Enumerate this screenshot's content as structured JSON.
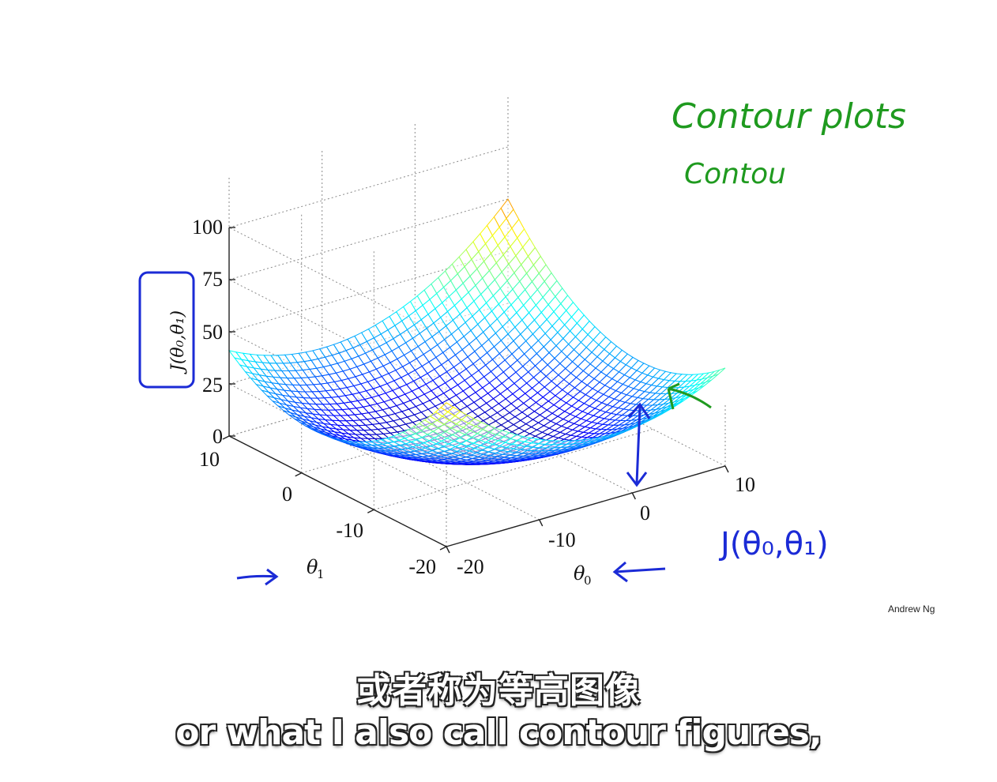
{
  "slide": {
    "credit": "Andrew Ng",
    "annotations": {
      "green_title": "Contour plots",
      "green_sub": "Contou",
      "blue_formula": "J(θ₀,θ₁)",
      "blue_ylabel_box": "J(θ₀,θ₁)"
    },
    "colors": {
      "green_ink": "#1f9a1f",
      "blue_ink": "#1b2bd6",
      "colormap": "jet"
    }
  },
  "chart_data": {
    "type": "surface",
    "title": "",
    "zlabel": "J(θ₀,θ₁)",
    "xlabel": "θ₀",
    "ylabel": "θ₁",
    "z_ticks": [
      "0",
      "25",
      "50",
      "75",
      "100"
    ],
    "theta0_ticks": [
      "-20",
      "-10",
      "0",
      "10"
    ],
    "theta1_ticks": [
      "-20",
      "-10",
      "0",
      "10"
    ],
    "theta0_range": [
      -20,
      10
    ],
    "theta1_range": [
      -20,
      10
    ],
    "zlim": [
      0,
      100
    ],
    "grid": true,
    "surface": "bowl-shaped (convex) cost surface, minimum near the centre, max ≈ 100 at a far corner"
  },
  "subtitles": {
    "chinese": "或者称为等高图像",
    "english": "or what I also call contour figures,"
  }
}
